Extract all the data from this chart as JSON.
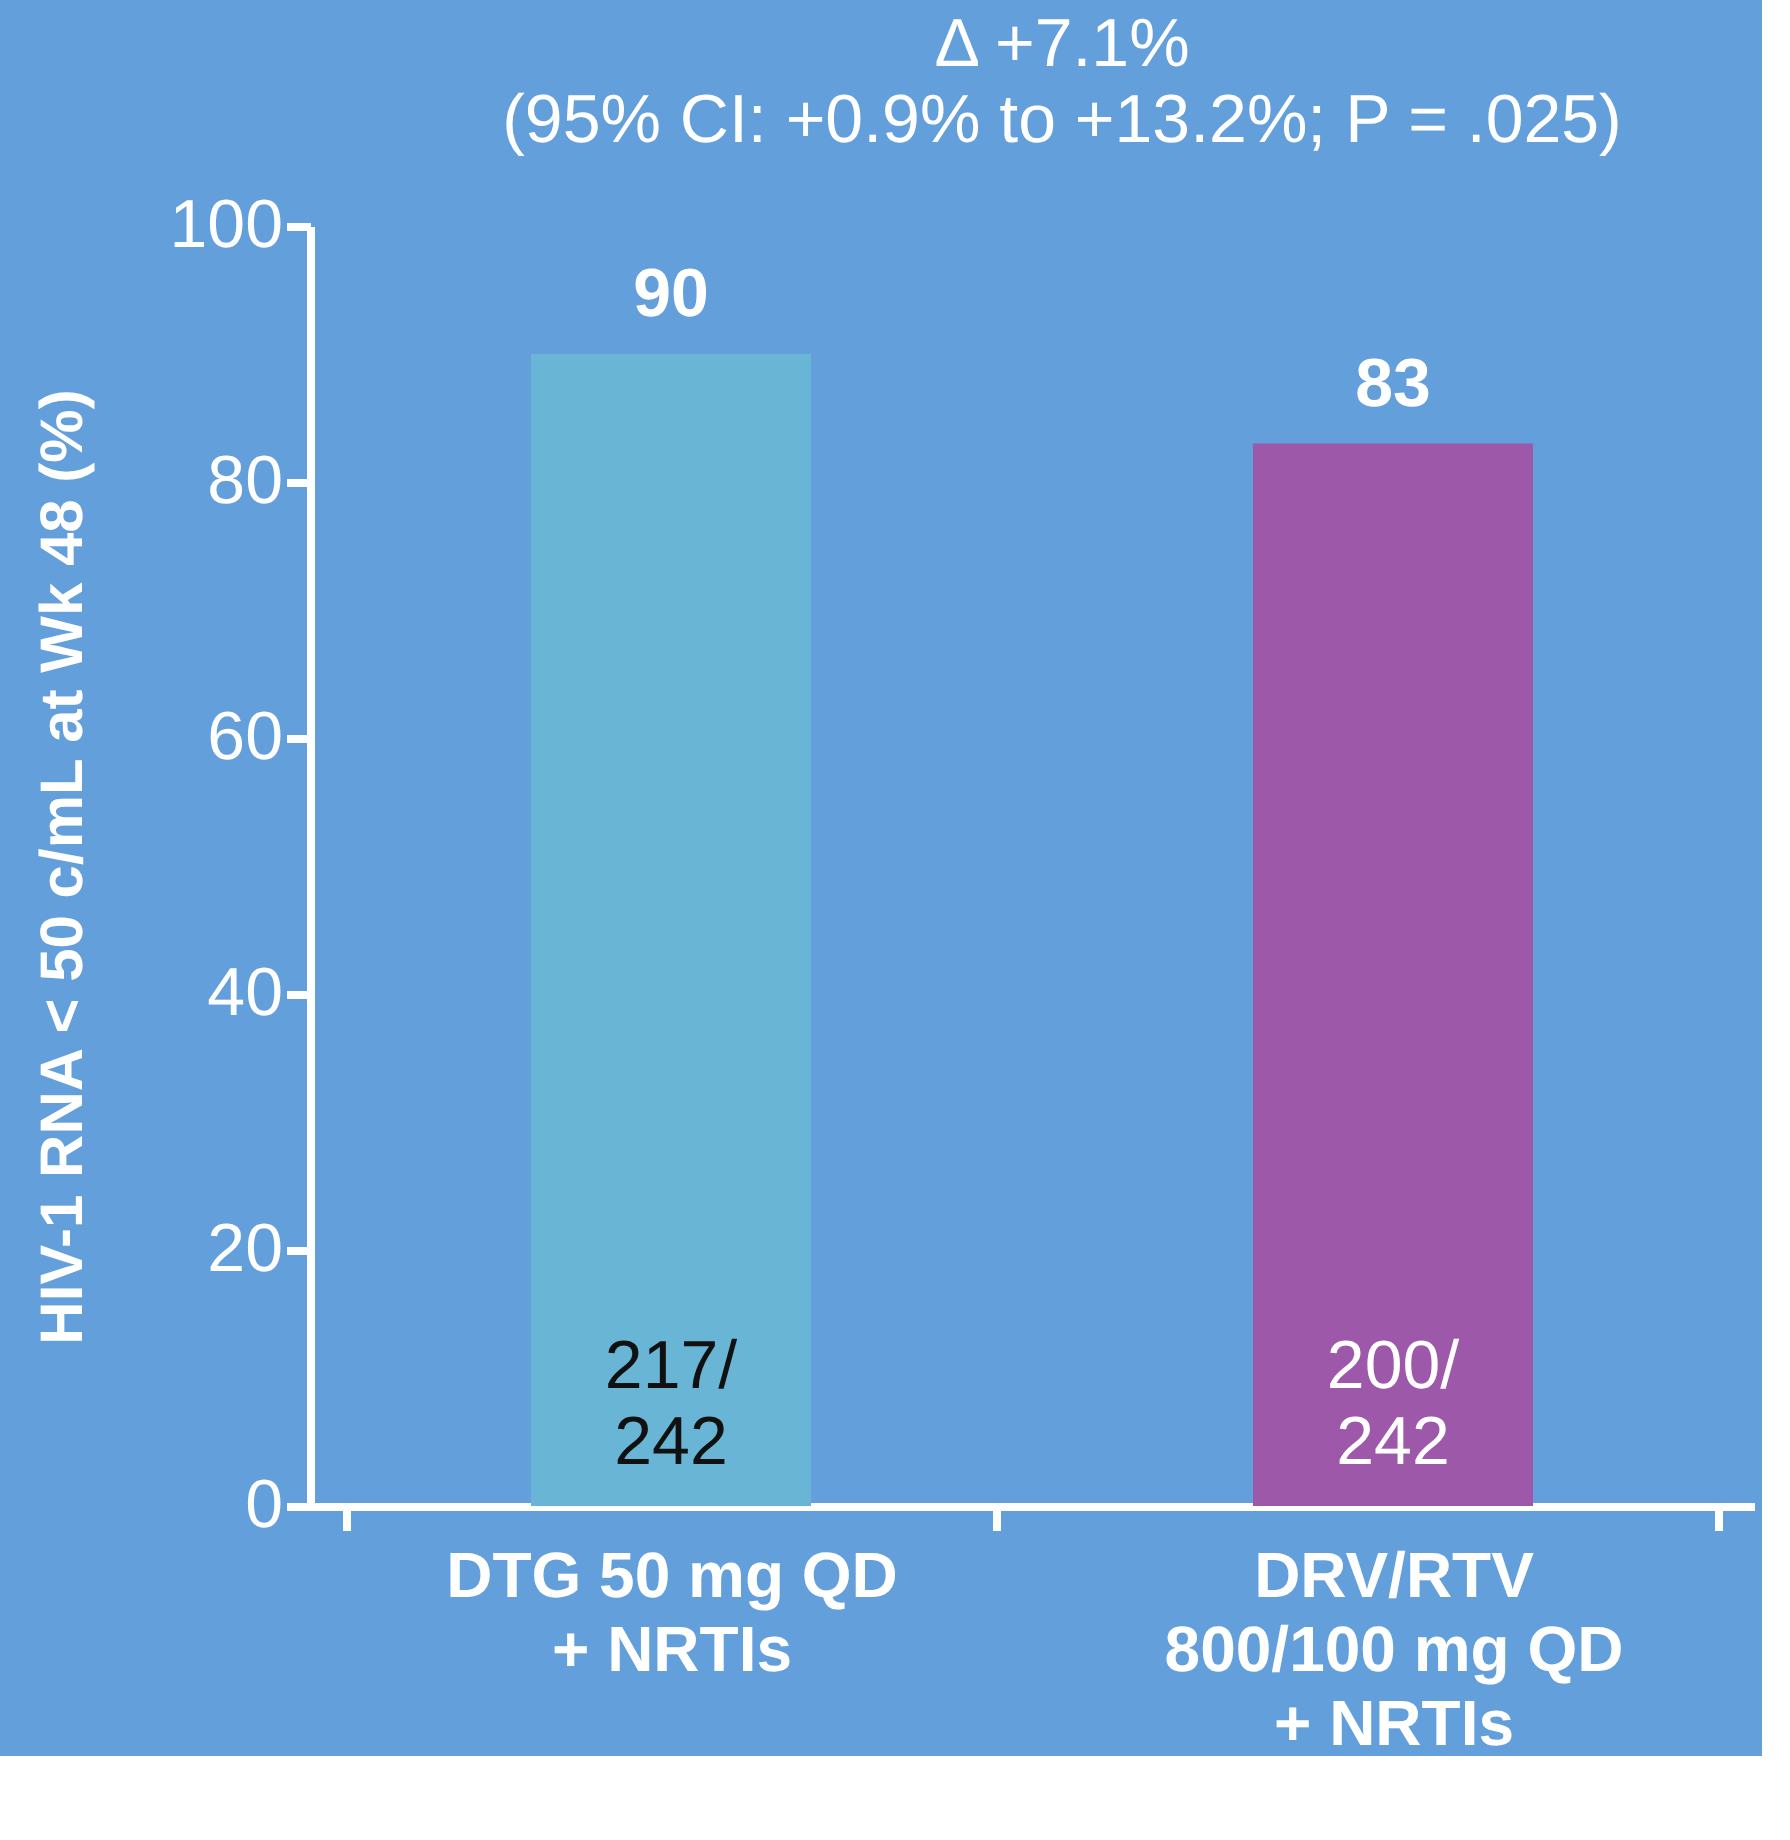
{
  "chart_data": {
    "type": "bar",
    "title": "Δ +7.1%",
    "subtitle": "(95% CI: +0.9% to +13.2%; P = .025)",
    "ylabel": "HIV-1 RNA < 50 c/mL at Wk 48 (%)",
    "categories": [
      "DTG 50 mg QD + NRTIs",
      "DRV/RTV 800/100 mg QD + NRTIs"
    ],
    "values": [
      90,
      83
    ],
    "colors": [
      "#69b5d6",
      "#9d58aa"
    ],
    "data_labels": true,
    "ylim": [
      0,
      100
    ],
    "yticks": [
      0,
      20,
      40,
      60,
      80,
      100
    ],
    "grid": false,
    "annotations": [
      "217/242",
      "200/242"
    ]
  }
}
